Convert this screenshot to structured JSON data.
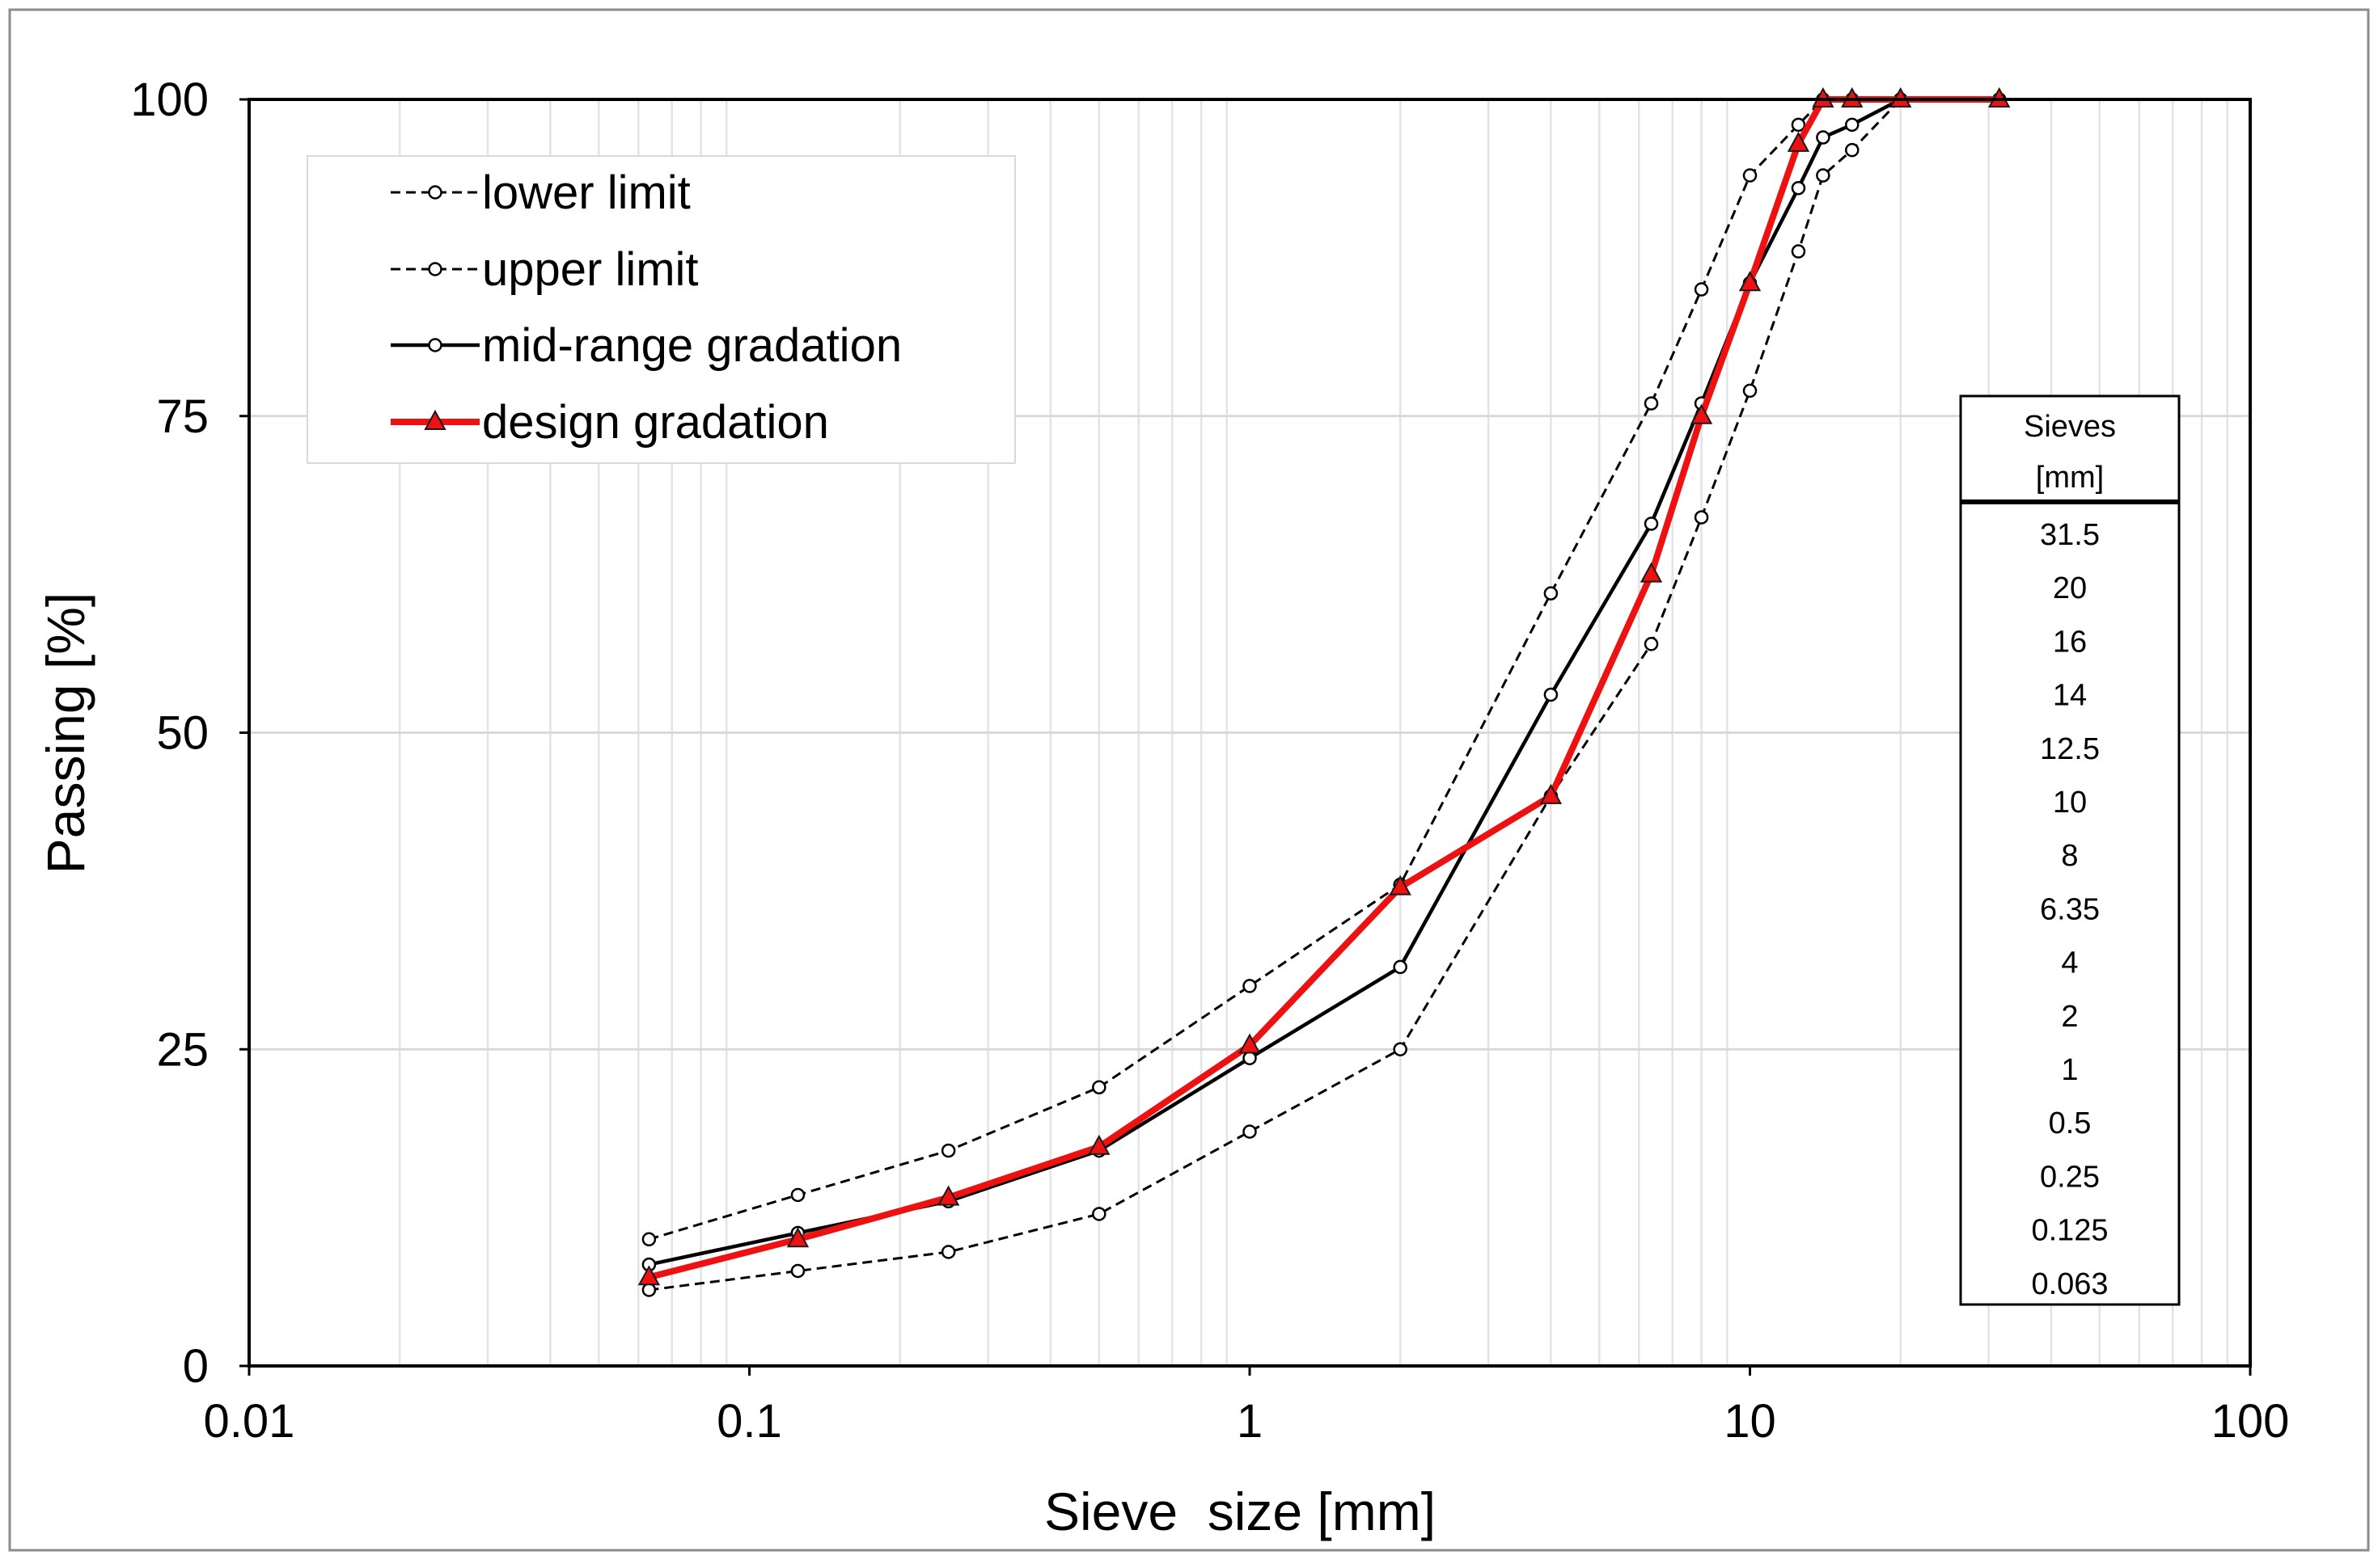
{
  "chart_data": {
    "type": "line",
    "xscale": "log",
    "xlabel": "Sieve  size [mm]",
    "ylabel": "Passing [%]",
    "xlim": [
      0.01,
      100
    ],
    "ylim": [
      0,
      100
    ],
    "x_ticks": [
      "0.01",
      "0.1",
      "1",
      "10",
      "100"
    ],
    "y_ticks": [
      "0",
      "25",
      "50",
      "75",
      "100"
    ],
    "grid": true,
    "legend_position": "top-left",
    "series": [
      {
        "name": "lower limit",
        "style": "dashed",
        "color": "#000000",
        "marker": "circle",
        "x": [
          0.063,
          0.125,
          0.25,
          0.5,
          1,
          2,
          4,
          6.35,
          8,
          10,
          12.5,
          14,
          16,
          20,
          31.5
        ],
        "y": [
          6,
          7.5,
          9,
          12,
          18.5,
          25,
          45,
          57,
          67,
          77,
          88,
          94,
          96,
          100,
          100
        ]
      },
      {
        "name": "upper limit",
        "style": "dashed",
        "color": "#000000",
        "marker": "circle",
        "x": [
          0.063,
          0.125,
          0.25,
          0.5,
          1,
          2,
          4,
          6.35,
          8,
          10,
          12.5,
          14,
          16,
          20,
          31.5
        ],
        "y": [
          10,
          13.5,
          17,
          22,
          30,
          38,
          61,
          76,
          85,
          94,
          98,
          100,
          100,
          100,
          100
        ]
      },
      {
        "name": "mid-range gradation",
        "style": "solid",
        "color": "#000000",
        "marker": "circle",
        "x": [
          0.063,
          0.125,
          0.25,
          0.5,
          1,
          2,
          4,
          6.35,
          8,
          10,
          12.5,
          14,
          16,
          20,
          31.5
        ],
        "y": [
          8,
          10.5,
          13,
          17,
          24.3,
          31.5,
          53,
          66.5,
          76,
          85.5,
          93,
          97,
          98,
          100,
          100
        ]
      },
      {
        "name": "design gradation",
        "style": "solid",
        "color": "#ee1111",
        "marker": "triangle",
        "x": [
          0.063,
          0.125,
          0.25,
          0.5,
          1,
          2,
          4,
          6.35,
          8,
          10,
          12.5,
          14,
          16,
          20,
          31.5
        ],
        "y": [
          7,
          10,
          13.3,
          17.3,
          25.3,
          37.8,
          45,
          62.5,
          75,
          85.5,
          96.5,
          100,
          100,
          100,
          100
        ]
      }
    ],
    "table": {
      "header_line1": "Sieves",
      "header_line2": "[mm]",
      "rows": [
        "31.5",
        "20",
        "16",
        "14",
        "12.5",
        "10",
        "8",
        "6.35",
        "4",
        "2",
        "1",
        "0.5",
        "0.25",
        "0.125",
        "0.063"
      ]
    }
  }
}
